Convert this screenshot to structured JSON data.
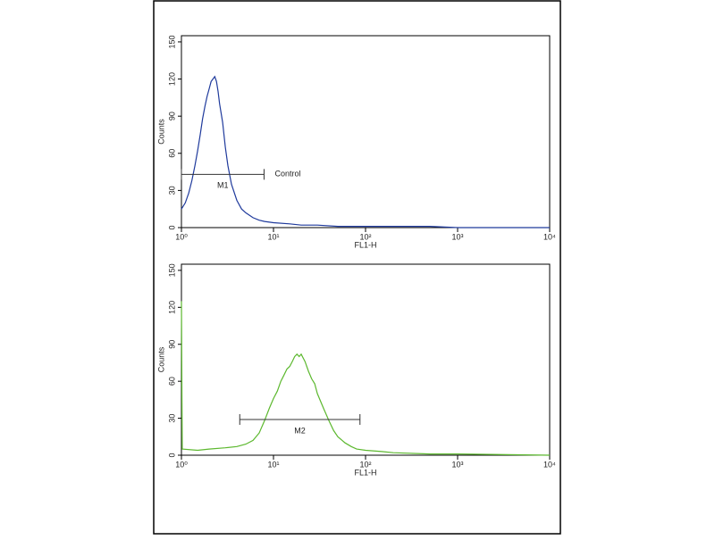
{
  "chart_data": [
    {
      "type": "line",
      "xscale": "log",
      "xlabel": "FL1-H",
      "ylabel": "Counts",
      "xlim": [
        1,
        10000
      ],
      "ylim": [
        0,
        155
      ],
      "xticks": [
        {
          "value": 1,
          "label": "10⁰"
        },
        {
          "value": 10,
          "label": "10¹"
        },
        {
          "value": 100,
          "label": "10²"
        },
        {
          "value": 1000,
          "label": "10³"
        },
        {
          "value": 10000,
          "label": "10⁴"
        }
      ],
      "yticks": [
        0,
        30,
        60,
        90,
        120,
        150
      ],
      "series": [
        {
          "color": "#1f3a9c",
          "x": [
            1.0,
            1.1,
            1.2,
            1.3,
            1.4,
            1.5,
            1.6,
            1.7,
            1.8,
            1.9,
            2.0,
            2.1,
            2.2,
            2.3,
            2.4,
            2.5,
            2.6,
            2.8,
            3.0,
            3.2,
            3.5,
            4,
            4.5,
            5,
            6,
            7,
            8,
            10,
            15,
            20,
            30,
            50,
            100,
            200,
            500,
            1000,
            3000,
            10000
          ],
          "values": [
            15,
            20,
            28,
            38,
            50,
            62,
            75,
            88,
            98,
            106,
            112,
            118,
            120,
            122,
            118,
            110,
            100,
            85,
            65,
            50,
            35,
            22,
            15,
            12,
            8,
            6,
            5,
            4,
            3,
            2,
            2,
            1,
            1,
            1,
            1,
            0,
            0,
            0
          ]
        }
      ],
      "markers": [
        {
          "label": "M1",
          "range": [
            1,
            7.9
          ],
          "y": 43,
          "note": "Control"
        }
      ]
    },
    {
      "type": "line",
      "xscale": "log",
      "xlabel": "FL1-H",
      "ylabel": "Counts",
      "xlim": [
        1,
        10000
      ],
      "ylim": [
        0,
        155
      ],
      "xticks": [
        {
          "value": 1,
          "label": "10⁰"
        },
        {
          "value": 10,
          "label": "10¹"
        },
        {
          "value": 100,
          "label": "10²"
        },
        {
          "value": 1000,
          "label": "10³"
        },
        {
          "value": 10000,
          "label": "10⁴"
        }
      ],
      "yticks": [
        0,
        30,
        60,
        90,
        120,
        150
      ],
      "series": [
        {
          "color": "#5cb82e",
          "x": [
            1.0,
            1.02,
            1.5,
            2,
            3,
            4,
            5,
            6,
            7,
            8,
            9,
            10,
            11,
            12,
            13,
            14,
            15,
            16,
            17,
            18,
            19,
            20,
            22,
            24,
            26,
            28,
            30,
            35,
            40,
            45,
            50,
            60,
            70,
            80,
            100,
            150,
            200,
            500,
            1000,
            10000
          ],
          "values": [
            125,
            5,
            4,
            5,
            6,
            7,
            9,
            12,
            18,
            28,
            38,
            46,
            52,
            60,
            65,
            70,
            72,
            76,
            80,
            82,
            80,
            82,
            76,
            68,
            62,
            58,
            50,
            38,
            28,
            20,
            15,
            10,
            7,
            5,
            4,
            3,
            2,
            1,
            1,
            0
          ]
        }
      ],
      "markers": [
        {
          "label": "M2",
          "range": [
            4.3,
            87
          ],
          "y": 29
        }
      ]
    }
  ]
}
